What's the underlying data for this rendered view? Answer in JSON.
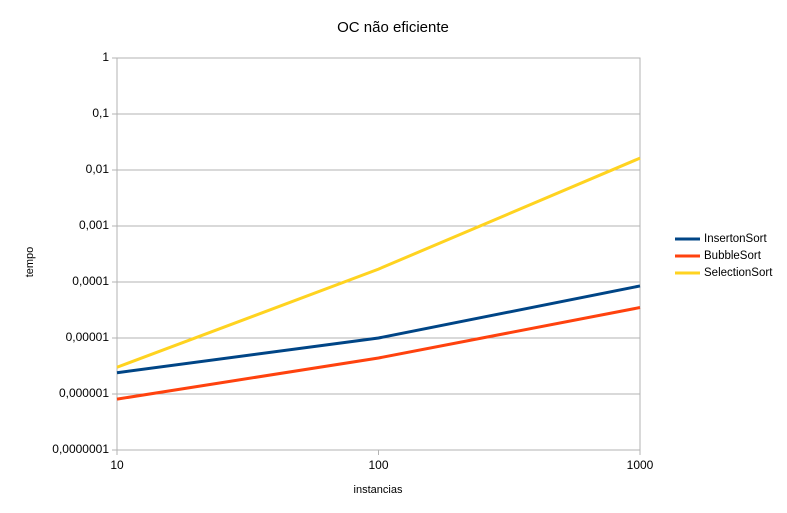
{
  "chart_data": {
    "type": "line",
    "title": "OC não eficiente",
    "x_label": "instancias",
    "y_label": "tempo",
    "x": [
      10,
      100,
      1000
    ],
    "xlim": [
      10,
      1000
    ],
    "xticks": [
      10,
      100,
      1000
    ],
    "x_log": true,
    "ylim": [
      1e-07,
      1
    ],
    "y_log": true,
    "yticks": [
      1,
      {
        "value": 0.1,
        "label": "0,1"
      },
      {
        "value": 0.01,
        "label": "0,01"
      },
      {
        "value": 0.001,
        "label": "0,001"
      },
      {
        "value": 0.0001,
        "label": "0,0001"
      },
      {
        "value": 1e-05,
        "label": "0,00001"
      },
      {
        "value": 1e-06,
        "label": "0,000001"
      },
      {
        "value": 1e-07,
        "label": "0,0000001"
      }
    ],
    "grid": true,
    "legend": "right",
    "series": [
      {
        "name": "InsertonSort",
        "color": "#004586",
        "values": [
          2.4e-06,
          1e-05,
          8.5e-05
        ]
      },
      {
        "name": "BubbleSort",
        "color": "#ff420e",
        "values": [
          8.1e-07,
          4.4e-06,
          3.5e-05
        ]
      },
      {
        "name": "SelectionSort",
        "color": "#ffd320",
        "values": [
          3e-06,
          0.00017,
          0.0163
        ]
      }
    ]
  }
}
